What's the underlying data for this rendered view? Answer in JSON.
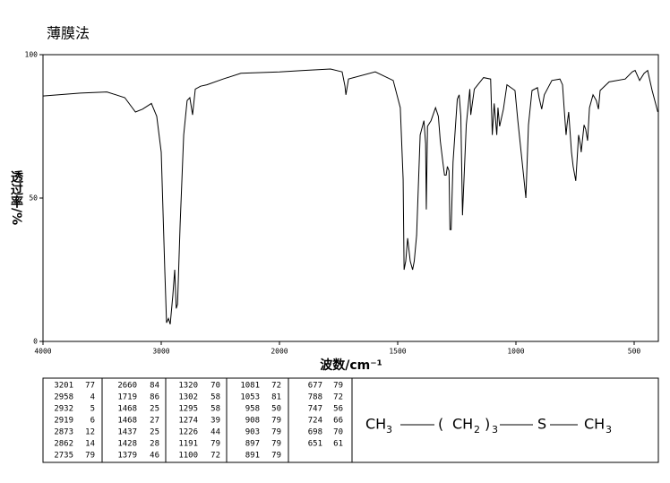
{
  "chart_data": {
    "type": "line",
    "title": "薄膜法",
    "x_label": "波数/cm⁻¹",
    "y_label": "透过率/%",
    "xlim": [
      4000,
      400
    ],
    "xticks": [
      4000,
      3000,
      2000,
      1500,
      1000,
      500
    ],
    "ylim": [
      0,
      100
    ],
    "yticks": [
      0,
      50,
      100
    ],
    "x": [
      4000,
      3684,
      3459,
      3308,
      3218,
      3158,
      3083,
      3038,
      3000,
      2970,
      2955,
      2939,
      2924,
      2902,
      2886,
      2873,
      2862,
      2840,
      2810,
      2781,
      2758,
      2735,
      2712,
      2667,
      2614,
      2477,
      2326,
      2000,
      1898,
      1784,
      1735,
      1723,
      1719,
      1708,
      1595,
      1519,
      1489,
      1477,
      1473,
      1466,
      1458,
      1447,
      1437,
      1430,
      1420,
      1405,
      1389,
      1382,
      1379,
      1374,
      1359,
      1340,
      1328,
      1320,
      1309,
      1302,
      1295,
      1290,
      1283,
      1279,
      1274,
      1266,
      1248,
      1240,
      1233,
      1226,
      1210,
      1195,
      1191,
      1176,
      1137,
      1107,
      1100,
      1092,
      1081,
      1076,
      1069,
      1053,
      1038,
      1004,
      992,
      966,
      958,
      947,
      932,
      909,
      902,
      891,
      880,
      848,
      814,
      803,
      795,
      788,
      784,
      777,
      765,
      758,
      747,
      735,
      727,
      724,
      712,
      705,
      697,
      689,
      674,
      660,
      651,
      644,
      606,
      538,
      508,
      496,
      477,
      458,
      443,
      424,
      400
    ],
    "series": [
      {
        "color": "#000000",
        "values": [
          85.6,
          86.6,
          87,
          85,
          80,
          81,
          83,
          78.5,
          66,
          25,
          6.5,
          8,
          6,
          16,
          25,
          11.5,
          13,
          41,
          72,
          84,
          85,
          79,
          88,
          89,
          89.5,
          91.5,
          93.5,
          94,
          94.5,
          95,
          94,
          89,
          86,
          91.5,
          94,
          91,
          81.5,
          56.5,
          25,
          28,
          36,
          28,
          25,
          28,
          37,
          72,
          77,
          69,
          46,
          75,
          77,
          81.5,
          78.5,
          70,
          62.5,
          58,
          58,
          61,
          59.5,
          39,
          39,
          62.5,
          84.5,
          86,
          78.5,
          44,
          75.5,
          88,
          79,
          88,
          92,
          91.5,
          72,
          83,
          72,
          81.5,
          75,
          81,
          89.5,
          87.5,
          77,
          56.5,
          50,
          75.5,
          87.5,
          88.5,
          85,
          81,
          86,
          91,
          91.5,
          89.5,
          80,
          72,
          75.5,
          80,
          66,
          61,
          56,
          72,
          68.5,
          66,
          75.5,
          74,
          70,
          81.5,
          86,
          84,
          81,
          87.5,
          90.5,
          91.5,
          94,
          94.5,
          91,
          93.5,
          94.5,
          87.5,
          80
        ]
      }
    ]
  },
  "peak_table": [
    [
      [
        3201,
        77
      ],
      [
        2958,
        4
      ],
      [
        2932,
        5
      ],
      [
        2919,
        6
      ],
      [
        2873,
        12
      ],
      [
        2862,
        14
      ],
      [
        2735,
        79
      ]
    ],
    [
      [
        2660,
        84
      ],
      [
        1719,
        86
      ],
      [
        1468,
        25
      ],
      [
        1468,
        27
      ],
      [
        1437,
        25
      ],
      [
        1428,
        28
      ],
      [
        1379,
        46
      ]
    ],
    [
      [
        1320,
        70
      ],
      [
        1302,
        58
      ],
      [
        1295,
        58
      ],
      [
        1274,
        39
      ],
      [
        1226,
        44
      ],
      [
        1191,
        79
      ],
      [
        1100,
        72
      ]
    ],
    [
      [
        1081,
        72
      ],
      [
        1053,
        81
      ],
      [
        958,
        50
      ],
      [
        908,
        79
      ],
      [
        903,
        79
      ],
      [
        897,
        79
      ],
      [
        891,
        79
      ]
    ],
    [
      [
        677,
        79
      ],
      [
        788,
        72
      ],
      [
        747,
        56
      ],
      [
        724,
        66
      ],
      [
        698,
        70
      ],
      [
        651,
        61
      ]
    ]
  ],
  "formula": [
    "CH",
    "3",
    "(",
    "CH",
    "2",
    ")",
    "3",
    "S",
    "CH",
    "3"
  ]
}
